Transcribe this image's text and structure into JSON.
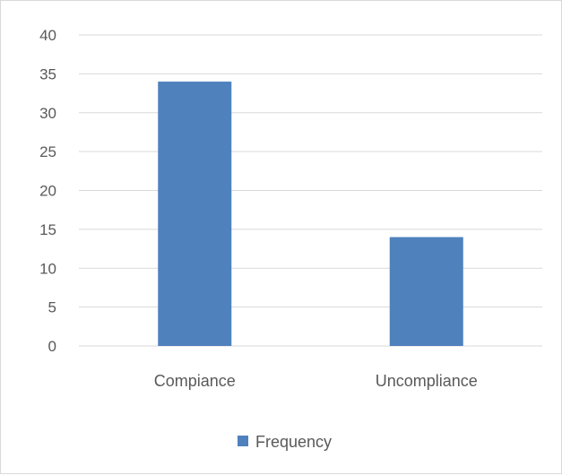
{
  "chart_data": {
    "type": "bar",
    "title": "",
    "xlabel": "",
    "ylabel": "",
    "categories": [
      "Compiance",
      "Uncompliance"
    ],
    "series": [
      {
        "name": "Frequency",
        "values": [
          34,
          14
        ]
      }
    ],
    "ylim": [
      0,
      40
    ],
    "yticks": [
      "0",
      "5",
      "10",
      "15",
      "20",
      "25",
      "30",
      "35",
      "40"
    ],
    "grid": true,
    "legend": "bottom",
    "colors": {
      "bar": "#4f81bd",
      "gridline": "#d9d9d9",
      "text": "#595959"
    }
  }
}
